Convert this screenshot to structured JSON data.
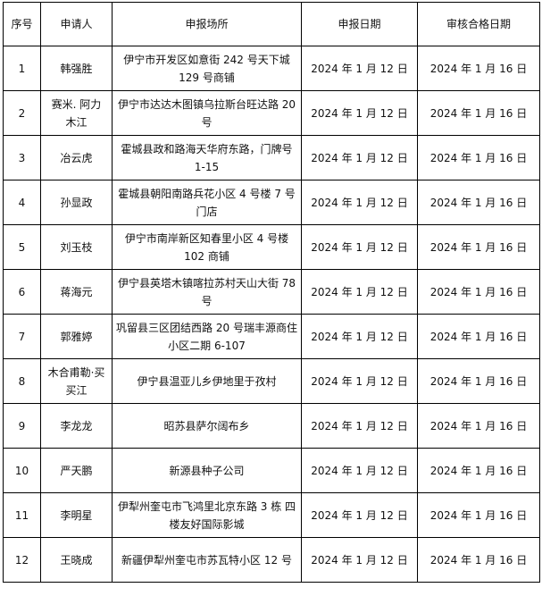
{
  "headers": [
    "序号",
    "申请人",
    "申报场所",
    "申报日期",
    "审核合格日期"
  ],
  "rows": [
    {
      "no": "1",
      "applicant": "韩强胜",
      "place": "伊宁市开发区如意街 242 号天下城 129 号商铺",
      "apply_date": "2024 年 1 月 12 日",
      "approve_date": "2024 年 1 月 16 日"
    },
    {
      "no": "2",
      "applicant": "赛米. 阿力木江",
      "place": "伊宁市达达木图镇乌拉斯台旺达路 20 号",
      "apply_date": "2024 年 1 月 12 日",
      "approve_date": "2024 年 1 月 16 日"
    },
    {
      "no": "3",
      "applicant": "冶云虎",
      "place": "霍城县政和路海天华府东路，门牌号 1-15",
      "apply_date": "2024 年 1 月 12 日",
      "approve_date": "2024 年 1 月 16 日"
    },
    {
      "no": "4",
      "applicant": "孙显政",
      "place": "霍城县朝阳南路兵花小区 4 号楼 7 号门店",
      "apply_date": "2024 年 1 月 12 日",
      "approve_date": "2024 年 1 月 16 日"
    },
    {
      "no": "5",
      "applicant": "刘玉枝",
      "place": "伊宁市南岸新区知春里小区 4 号楼 102 商铺",
      "apply_date": "2024 年 1 月 12 日",
      "approve_date": "2024 年 1 月 16 日"
    },
    {
      "no": "6",
      "applicant": "蒋海元",
      "place": "伊宁县英塔木镇喀拉苏村天山大街 78 号",
      "apply_date": "2024 年 1 月 12 日",
      "approve_date": "2024 年 1 月 16 日"
    },
    {
      "no": "7",
      "applicant": "郭雅婷",
      "place": "巩留县三区团结西路 20 号瑞丰源商住小区二期 6-107",
      "apply_date": "2024 年 1 月 12 日",
      "approve_date": "2024 年 1 月 16 日"
    },
    {
      "no": "8",
      "applicant": "木合甫勒·买买江",
      "place": "伊宁县温亚儿乡伊地里于孜村",
      "apply_date": "2024 年 1 月 12 日",
      "approve_date": "2024 年 1 月 16 日"
    },
    {
      "no": "9",
      "applicant": "李龙龙",
      "place": "昭苏县萨尔阔布乡",
      "apply_date": "2024 年 1 月 12 日",
      "approve_date": "2024 年 1 月 16 日"
    },
    {
      "no": "10",
      "applicant": "严天鹏",
      "place": "新源县种子公司",
      "apply_date": "2024 年 1 月 12 日",
      "approve_date": "2024 年 1 月 16 日"
    },
    {
      "no": "11",
      "applicant": "李明星",
      "place": "伊犁州奎屯市飞鸿里北京东路 3 栋  四楼友好国际影城",
      "apply_date": "2024 年 1 月 12 日",
      "approve_date": "2024 年 1 月 16 日"
    },
    {
      "no": "12",
      "applicant": "王晓成",
      "place": "新疆伊犁州奎屯市苏瓦特小区 12 号",
      "apply_date": "2024 年 1 月 12 日",
      "approve_date": "2024 年 1 月 16 日"
    }
  ]
}
